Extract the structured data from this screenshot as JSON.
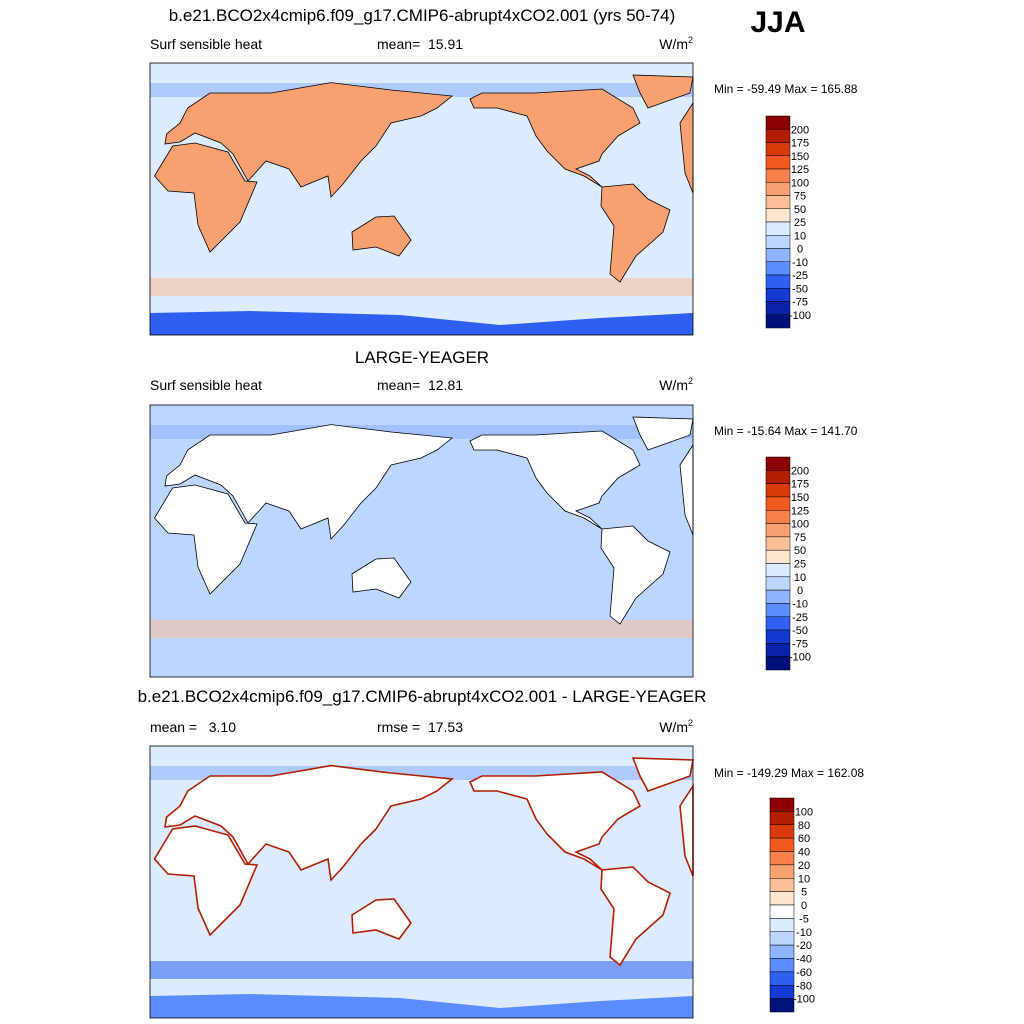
{
  "header": {
    "label": "JJA"
  },
  "panels": [
    {
      "title": "b.e21.BCO2x4cmip6.f09_g17.CMIP6-abrupt4xCO2.001 (yrs 50-74)",
      "left_label": "Surf sensible heat",
      "center_label": "mean=  15.91",
      "units": {
        "base": "W/m",
        "sup": "2"
      },
      "range_label": "Min = -59.49 Max = 165.88",
      "colorbar": {
        "labels": [
          "200",
          "175",
          "150",
          "125",
          "100",
          "75",
          "50",
          "25",
          "10",
          "0",
          "-10",
          "-25",
          "-50",
          "-75",
          "-100"
        ],
        "colors": [
          "#8b0000",
          "#b41e00",
          "#d93a0a",
          "#f05a1e",
          "#f7804a",
          "#f9a070",
          "#fbbf98",
          "#fde6cf",
          "#dcebff",
          "#bcd6ff",
          "#8fb4ff",
          "#5a8cff",
          "#2f5ff0",
          "#1439d0",
          "#0a22a8",
          "#00107a"
        ]
      }
    },
    {
      "title": "LARGE-YEAGER",
      "left_label": "Surf sensible heat",
      "center_label": "mean=  12.81",
      "units": {
        "base": "W/m",
        "sup": "2"
      },
      "range_label": "Min = -15.64 Max = 141.70",
      "colorbar": {
        "labels": [
          "200",
          "175",
          "150",
          "125",
          "100",
          "75",
          "50",
          "25",
          "10",
          "0",
          "-10",
          "-25",
          "-50",
          "-75",
          "-100"
        ],
        "colors": [
          "#8b0000",
          "#b41e00",
          "#d93a0a",
          "#f05a1e",
          "#f7804a",
          "#f9a070",
          "#fbbf98",
          "#fde6cf",
          "#dcebff",
          "#bcd6ff",
          "#8fb4ff",
          "#5a8cff",
          "#2f5ff0",
          "#1439d0",
          "#0a22a8",
          "#00107a"
        ]
      }
    },
    {
      "title": "b.e21.BCO2x4cmip6.f09_g17.CMIP6-abrupt4xCO2.001 - LARGE-YEAGER",
      "left_label": "mean =   3.10",
      "center_label": "rmse =  17.53",
      "units": {
        "base": "W/m",
        "sup": "2"
      },
      "range_label": "Min = -149.29 Max = 162.08",
      "colorbar": {
        "labels": [
          "100",
          "80",
          "60",
          "40",
          "20",
          "10",
          "5",
          "0",
          "-5",
          "-10",
          "-20",
          "-40",
          "-60",
          "-80",
          "-100"
        ],
        "colors": [
          "#8b0000",
          "#b41e00",
          "#d93a0a",
          "#f05a1e",
          "#f7804a",
          "#f9a070",
          "#fbbf98",
          "#fde6cf",
          "#ffffff",
          "#dcebff",
          "#bcd6ff",
          "#8fb4ff",
          "#5a8cff",
          "#2f5ff0",
          "#1439d0",
          "#00107a"
        ]
      }
    }
  ]
}
